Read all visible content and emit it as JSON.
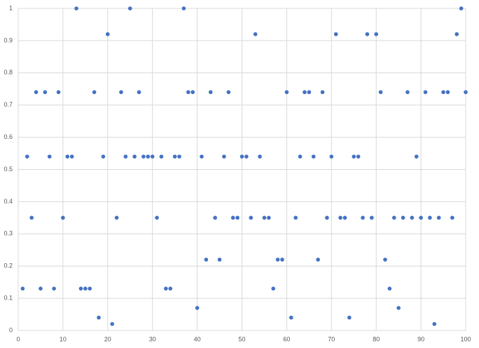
{
  "chart_data": {
    "type": "scatter",
    "color": "#4472c4",
    "grid": true,
    "x": [
      1,
      2,
      3,
      4,
      5,
      6,
      7,
      8,
      9,
      10,
      11,
      12,
      13,
      14,
      15,
      16,
      17,
      18,
      19,
      20,
      21,
      22,
      23,
      24,
      25,
      26,
      27,
      28,
      29,
      30,
      31,
      32,
      33,
      34,
      35,
      36,
      37,
      38,
      39,
      40,
      41,
      42,
      43,
      44,
      45,
      46,
      47,
      48,
      49,
      50,
      51,
      52,
      53,
      54,
      55,
      56,
      57,
      58,
      59,
      60,
      61,
      62,
      63,
      64,
      65,
      66,
      67,
      68,
      69,
      70,
      71,
      72,
      73,
      74,
      75,
      76,
      77,
      78,
      79,
      80,
      81,
      82,
      83,
      84,
      85,
      86,
      87,
      88,
      89,
      90,
      91,
      92,
      93,
      94,
      95,
      96,
      97,
      98,
      99,
      100
    ],
    "values": [
      0.13,
      0.54,
      0.35,
      0.74,
      0.13,
      0.74,
      0.54,
      0.13,
      0.74,
      0.35,
      0.54,
      0.54,
      1,
      0.13,
      0.13,
      0.13,
      0.74,
      0.04,
      0.54,
      0.92,
      0.02,
      0.35,
      0.74,
      0.54,
      1,
      0.54,
      0.74,
      0.54,
      0.54,
      0.54,
      0.35,
      0.54,
      0.13,
      0.13,
      0.54,
      0.54,
      1,
      0.74,
      0.74,
      0.07,
      0.54,
      0.22,
      0.74,
      0.35,
      0.22,
      0.54,
      0.74,
      0.35,
      0.35,
      0.54,
      0.54,
      0.35,
      0.92,
      0.54,
      0.35,
      0.35,
      0.13,
      0.22,
      0.22,
      0.74,
      0.04,
      0.35,
      0.54,
      0.74,
      0.74,
      0.54,
      0.22,
      0.74,
      0.35,
      0.54,
      0.92,
      0.35,
      0.35,
      0.04,
      0.54,
      0.54,
      0.35,
      0.92,
      0.35,
      0.92,
      0.74,
      0.22,
      0.13,
      0.35,
      0.07,
      0.35,
      0.74,
      0.35,
      0.54,
      0.35,
      0.74,
      0.35,
      0.02,
      0.35,
      0.74,
      0.74,
      0.35,
      0.92,
      1,
      0.74
    ],
    "xlim": [
      0,
      100
    ],
    "xticks": [
      0,
      10,
      20,
      30,
      40,
      50,
      60,
      70,
      80,
      90,
      100
    ],
    "ylim": [
      0,
      1
    ],
    "yticks": [
      0,
      0.1,
      0.2,
      0.3,
      0.4,
      0.5,
      0.6,
      0.7,
      0.8,
      0.9,
      1
    ]
  }
}
